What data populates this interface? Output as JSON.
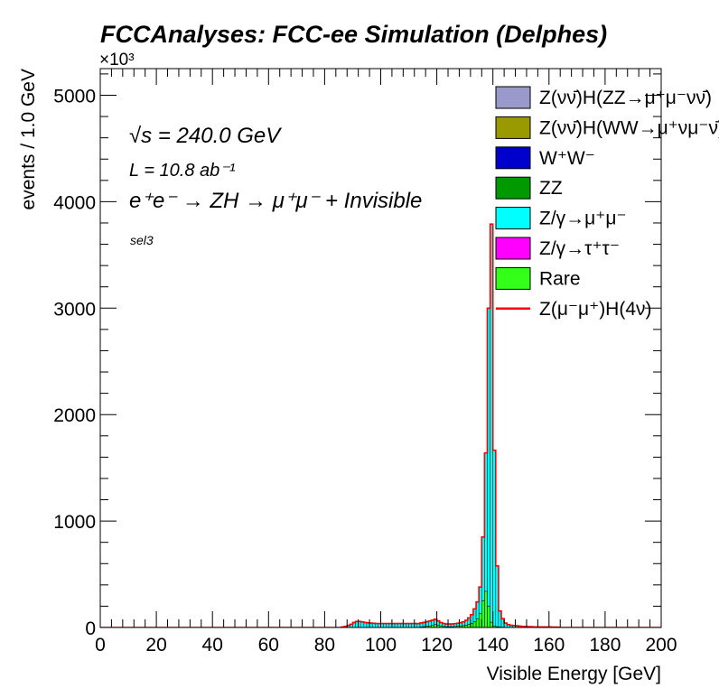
{
  "chart_data": {
    "type": "histogram-stacked",
    "title": "FCCAnalyses: FCC-ee Simulation (Delphes)",
    "xlabel": "Visible Energy [GeV]",
    "ylabel": "events / 1.0 GeV",
    "y_multiplier": "×10³",
    "xlim": [
      0,
      200
    ],
    "ylim": [
      0,
      5250
    ],
    "x_ticks": [
      0,
      20,
      40,
      60,
      80,
      100,
      120,
      140,
      160,
      180,
      200
    ],
    "y_ticks": [
      0,
      1000,
      2000,
      3000,
      4000,
      5000
    ],
    "x_tick_labels": [
      "0",
      "20",
      "40",
      "60",
      "80",
      "100",
      "120",
      "140",
      "160",
      "180",
      "200"
    ],
    "y_tick_labels": [
      "0",
      "1000",
      "2000",
      "3000",
      "4000",
      "5000"
    ],
    "annotations": {
      "sqrt_s": "√s = 240.0 GeV",
      "lumi": "L = 10.8 ab⁻¹",
      "process": "e⁺e⁻ → ZH → μ⁺μ⁻ + Invisible",
      "selection": "sel3"
    },
    "legend_position": "top-right",
    "bin_width": 1.0,
    "bin_edges": [
      85,
      86,
      87,
      88,
      89,
      90,
      91,
      92,
      93,
      94,
      95,
      96,
      97,
      98,
      99,
      100,
      101,
      102,
      103,
      104,
      105,
      106,
      107,
      108,
      109,
      110,
      111,
      112,
      113,
      114,
      115,
      116,
      117,
      118,
      119,
      120,
      121,
      122,
      123,
      124,
      125,
      126,
      127,
      128,
      129,
      130,
      131,
      132,
      133,
      134,
      135,
      136,
      137,
      138,
      139,
      140,
      141,
      142,
      143,
      144,
      145,
      146,
      147,
      148,
      149,
      150,
      151,
      152,
      153,
      154,
      155,
      156,
      157,
      158,
      159,
      160,
      161,
      162,
      163,
      164
    ],
    "series": [
      {
        "name": "Rare",
        "color": "#33ff1a",
        "values": [
          0,
          0,
          0,
          0,
          0,
          2,
          2,
          2,
          2,
          2,
          2,
          2,
          2,
          2,
          2,
          2,
          2,
          2,
          2,
          2,
          2,
          2,
          2,
          2,
          2,
          2,
          2,
          2,
          2,
          5,
          8,
          12,
          15,
          20,
          28,
          22,
          16,
          10,
          8,
          8,
          8,
          10,
          12,
          15,
          18,
          22,
          30,
          40,
          55,
          80,
          130,
          250,
          340,
          200,
          50,
          15,
          8,
          5,
          3,
          2,
          2,
          1,
          1,
          1,
          1,
          0,
          0,
          0,
          0,
          0,
          0,
          0,
          0,
          0,
          0,
          0,
          0,
          0,
          0
        ]
      },
      {
        "name": "Z/γ→τ⁺τ⁻",
        "color": "#ff00ff",
        "values": [
          0,
          0,
          0,
          0,
          0,
          0,
          0,
          0,
          0,
          0,
          0,
          0,
          0,
          0,
          0,
          0,
          0,
          0,
          0,
          0,
          0,
          0,
          0,
          0,
          0,
          0,
          0,
          0,
          0,
          0,
          0,
          0,
          0,
          0,
          0,
          0,
          0,
          0,
          0,
          0,
          0,
          0,
          0,
          0,
          0,
          0,
          0,
          0,
          0,
          0,
          0,
          0,
          0,
          0,
          0,
          0,
          0,
          0,
          0,
          0,
          0,
          0,
          0,
          0,
          0,
          0,
          0,
          0,
          0,
          0,
          0,
          0,
          0,
          0,
          0,
          0,
          0,
          0,
          0
        ]
      },
      {
        "name": "Z/γ→μ⁺μ⁻",
        "color": "#00ffff",
        "values": [
          0,
          5,
          10,
          20,
          30,
          45,
          55,
          55,
          50,
          45,
          42,
          40,
          38,
          36,
          36,
          36,
          36,
          36,
          36,
          36,
          36,
          36,
          36,
          36,
          36,
          36,
          36,
          36,
          35,
          38,
          40,
          42,
          45,
          48,
          50,
          40,
          30,
          28,
          25,
          25,
          25,
          26,
          28,
          30,
          35,
          45,
          60,
          80,
          120,
          160,
          250,
          600,
          1300,
          2800,
          3740,
          1650,
          570,
          150,
          80,
          40,
          25,
          20,
          18,
          15,
          12,
          10,
          10,
          8,
          8,
          6,
          5,
          5,
          5,
          5,
          5,
          5,
          4,
          4,
          3
        ]
      },
      {
        "name": "ZZ",
        "color": "#009900",
        "values": [
          0,
          0,
          0,
          0,
          0,
          0,
          0,
          0,
          0,
          0,
          0,
          0,
          0,
          0,
          0,
          0,
          0,
          0,
          0,
          0,
          0,
          0,
          0,
          0,
          0,
          0,
          0,
          0,
          0,
          0,
          0,
          0,
          0,
          0,
          0,
          0,
          0,
          0,
          0,
          0,
          0,
          0,
          0,
          0,
          0,
          0,
          0,
          0,
          0,
          0,
          0,
          0,
          0,
          0,
          0,
          0,
          0,
          0,
          0,
          0,
          0,
          0,
          0,
          0,
          0,
          0,
          0,
          0,
          0,
          0,
          0,
          0,
          0,
          0,
          0,
          0,
          0,
          0,
          0
        ]
      },
      {
        "name": "W⁺W⁻",
        "color": "#0000cc",
        "values": [
          0,
          0,
          0,
          0,
          0,
          0,
          0,
          0,
          0,
          0,
          0,
          0,
          0,
          0,
          0,
          0,
          0,
          0,
          0,
          0,
          0,
          0,
          0,
          0,
          0,
          0,
          0,
          0,
          0,
          0,
          0,
          0,
          0,
          0,
          0,
          0,
          0,
          0,
          0,
          0,
          0,
          0,
          0,
          0,
          0,
          0,
          0,
          0,
          0,
          0,
          0,
          0,
          0,
          0,
          0,
          0,
          0,
          0,
          0,
          0,
          0,
          0,
          0,
          0,
          0,
          0,
          0,
          0,
          0,
          0,
          0,
          0,
          0,
          0,
          0,
          0,
          0,
          0,
          0
        ]
      },
      {
        "name": "Z(νν̄)H(WW→μ⁺νμ⁻ν̄)",
        "color": "#999900",
        "values": [
          0,
          0,
          0,
          0,
          0,
          0,
          0,
          0,
          0,
          0,
          0,
          0,
          0,
          0,
          0,
          0,
          0,
          0,
          0,
          0,
          0,
          0,
          0,
          0,
          0,
          0,
          0,
          0,
          0,
          0,
          0,
          0,
          0,
          0,
          0,
          0,
          0,
          0,
          0,
          0,
          0,
          0,
          0,
          0,
          0,
          0,
          0,
          0,
          0,
          0,
          0,
          0,
          0,
          0,
          0,
          0,
          0,
          0,
          0,
          0,
          0,
          0,
          0,
          0,
          0,
          0,
          0,
          0,
          0,
          0,
          0,
          0,
          0,
          0,
          0,
          0,
          0,
          0,
          0
        ]
      },
      {
        "name": "Z(νν̄)H(ZZ→μ⁺μ⁻νν̄)",
        "color": "#9999cc",
        "values": [
          0,
          0,
          0,
          0,
          0,
          0,
          0,
          0,
          0,
          0,
          0,
          0,
          0,
          0,
          0,
          0,
          0,
          0,
          0,
          0,
          0,
          0,
          0,
          0,
          0,
          0,
          0,
          0,
          0,
          0,
          0,
          0,
          0,
          0,
          0,
          0,
          0,
          0,
          0,
          0,
          0,
          0,
          0,
          0,
          0,
          0,
          0,
          0,
          0,
          0,
          0,
          0,
          0,
          0,
          0,
          0,
          0,
          0,
          0,
          0,
          0,
          0,
          0,
          0,
          0,
          0,
          0,
          0,
          0,
          0,
          0,
          0,
          0,
          0,
          0,
          0,
          0,
          0,
          0
        ]
      }
    ],
    "signal": {
      "name": "Z(μ⁻μ⁺)H(4ν)",
      "color": "#ff0000",
      "values": [
        0,
        0,
        0,
        0,
        0,
        0,
        0,
        0,
        0,
        0,
        0,
        0,
        0,
        0,
        0,
        0,
        0,
        0,
        0,
        0,
        0,
        0,
        0,
        0,
        0,
        0,
        0,
        0,
        0,
        0,
        0,
        0,
        0,
        0,
        0,
        0,
        0,
        0,
        0,
        0,
        0,
        0,
        0,
        0,
        0,
        0,
        0,
        0,
        0,
        0,
        0,
        0,
        0,
        0,
        0,
        0,
        0,
        0,
        0,
        0,
        0,
        0,
        0,
        0,
        0,
        0,
        0,
        0,
        0,
        0,
        0,
        0,
        0,
        0,
        0,
        0,
        0,
        0,
        0
      ]
    },
    "legend": [
      {
        "label": "Z(νν̄)H(ZZ→μ⁺μ⁻νν̄)",
        "color": "#9999cc",
        "kind": "fill"
      },
      {
        "label": "Z(νν̄)H(WW→μ⁺νμ⁻ν̄)",
        "color": "#999900",
        "kind": "fill"
      },
      {
        "label": "W⁺W⁻",
        "color": "#0000cc",
        "kind": "fill"
      },
      {
        "label": "ZZ",
        "color": "#009900",
        "kind": "fill"
      },
      {
        "label": "Z/γ→μ⁺μ⁻",
        "color": "#00ffff",
        "kind": "fill"
      },
      {
        "label": "Z/γ→τ⁺τ⁻",
        "color": "#ff00ff",
        "kind": "fill"
      },
      {
        "label": "Rare",
        "color": "#33ff1a",
        "kind": "fill"
      },
      {
        "label": "Z(μ⁻μ⁺)H(4ν)",
        "color": "#ff0000",
        "kind": "line"
      }
    ]
  }
}
